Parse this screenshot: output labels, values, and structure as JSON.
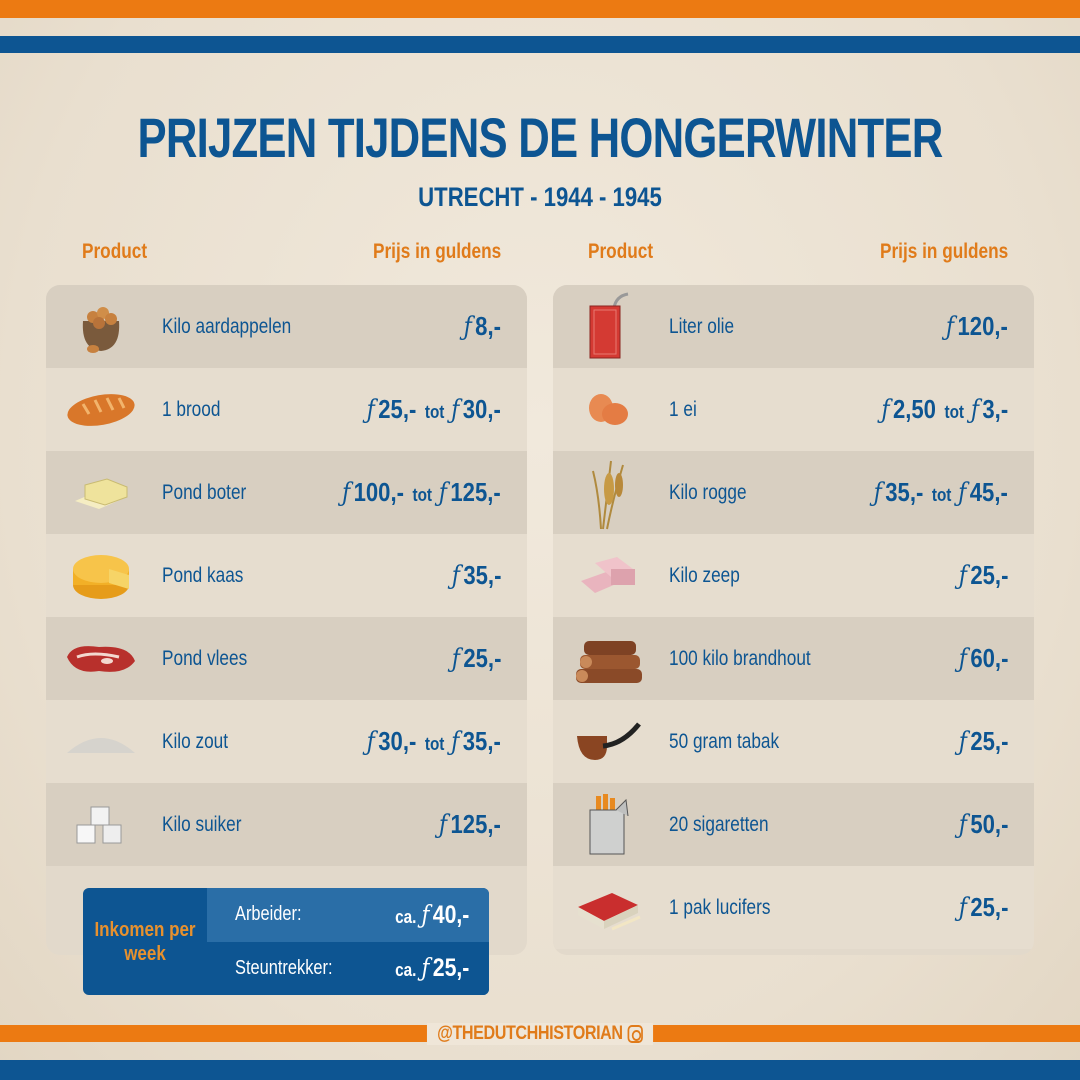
{
  "header": {
    "title": "PRIJZEN TIJDENS DE HONGERWINTER",
    "subtitle": "UTRECHT - 1944 - 1945"
  },
  "columns": {
    "left": {
      "product": "Product",
      "price": "Prijs in guldens"
    },
    "right": {
      "product": "Product",
      "price": "Prijs in guldens"
    }
  },
  "currency_symbol": "ƒ",
  "range_word": "tot",
  "left_items": [
    {
      "icon": "potato-sack-icon",
      "name": "Kilo aardappelen",
      "price_from": "8,-",
      "price_to": null
    },
    {
      "icon": "bread-icon",
      "name": "1 brood",
      "price_from": "25,-",
      "price_to": "30,-"
    },
    {
      "icon": "butter-icon",
      "name": "Pond boter",
      "price_from": "100,-",
      "price_to": "125,-"
    },
    {
      "icon": "cheese-icon",
      "name": "Pond kaas",
      "price_from": "35,-",
      "price_to": null
    },
    {
      "icon": "meat-icon",
      "name": "Pond vlees",
      "price_from": "25,-",
      "price_to": null
    },
    {
      "icon": "salt-icon",
      "name": "Kilo zout",
      "price_from": "30,-",
      "price_to": "35,-"
    },
    {
      "icon": "sugar-cubes-icon",
      "name": "Kilo suiker",
      "price_from": "125,-",
      "price_to": null
    }
  ],
  "right_items": [
    {
      "icon": "oil-can-icon",
      "name": "Liter olie",
      "price_from": "120,-",
      "price_to": null
    },
    {
      "icon": "eggs-icon",
      "name": "1 ei",
      "price_from": "2,50",
      "price_to": "3,-"
    },
    {
      "icon": "rye-icon",
      "name": "Kilo rogge",
      "price_from": "35,-",
      "price_to": "45,-"
    },
    {
      "icon": "soap-icon",
      "name": "Kilo zeep",
      "price_from": "25,-",
      "price_to": null
    },
    {
      "icon": "firewood-icon",
      "name": "100 kilo brandhout",
      "price_from": "60,-",
      "price_to": null
    },
    {
      "icon": "pipe-icon",
      "name": "50 gram tabak",
      "price_from": "25,-",
      "price_to": null
    },
    {
      "icon": "cigarettes-icon",
      "name": "20 sigaretten",
      "price_from": "50,-",
      "price_to": null
    },
    {
      "icon": "matches-icon",
      "name": "1 pak lucifers",
      "price_from": "25,-",
      "price_to": null
    }
  ],
  "income": {
    "label": "Inkomen per week",
    "ca": "ca.",
    "rows": [
      {
        "name": "Arbeider:",
        "value": "40,-"
      },
      {
        "name": "Steuntrekker:",
        "value": "25,-"
      }
    ]
  },
  "footer": {
    "handle": "@THEDUTCHHISTORIAN"
  },
  "colors": {
    "orange": "#ec7a12",
    "blue": "#0d5592",
    "background": "#efe6d8"
  }
}
